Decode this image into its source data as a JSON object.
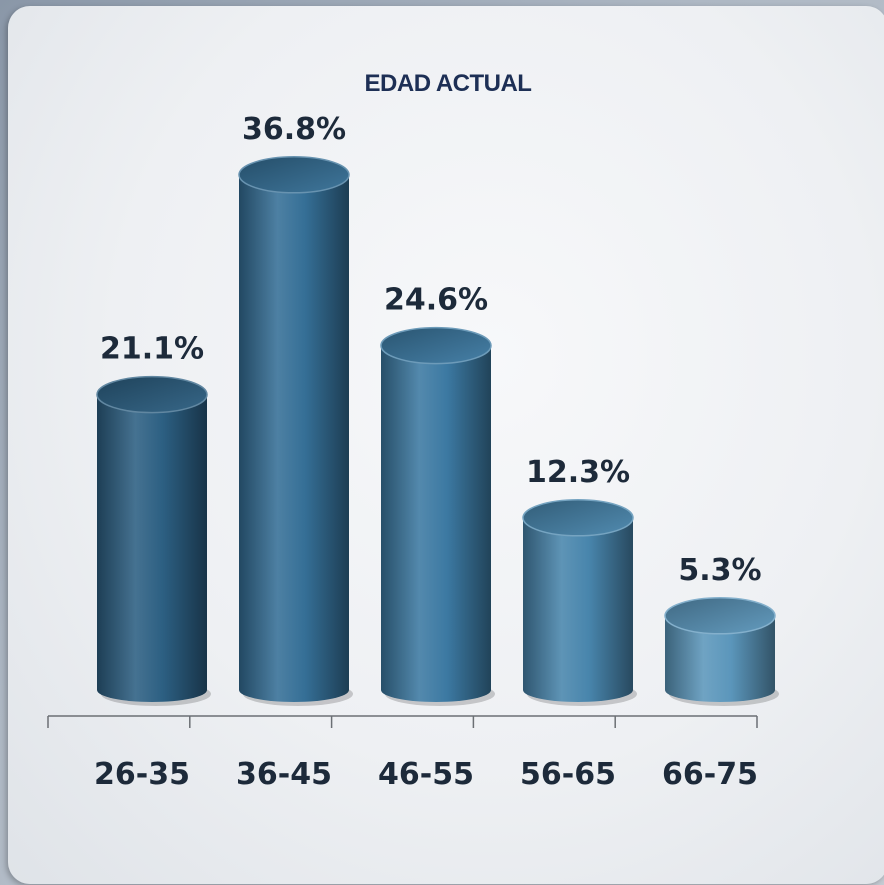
{
  "chart_data": {
    "type": "bar",
    "title": "EDAD ACTUAL",
    "categories": [
      "26-35",
      "36-45",
      "46-55",
      "56-65",
      "66-75"
    ],
    "values": [
      21.1,
      36.8,
      24.6,
      12.3,
      5.3
    ],
    "value_labels": [
      "21.1%",
      "36.8%",
      "24.6%",
      "12.3%",
      "5.3%"
    ],
    "xlabel": "",
    "ylabel": "",
    "ylim": [
      0,
      40
    ],
    "grid": false,
    "legend": "none",
    "bar_style": "3d-cylinder",
    "colors": {
      "bars": [
        "#2c5f82",
        "#356f96",
        "#3c79a2",
        "#4885ac",
        "#5b96bb"
      ],
      "title": "#1d2f55",
      "labels": "#1d2a3a",
      "axis": "#6b6f74"
    }
  }
}
